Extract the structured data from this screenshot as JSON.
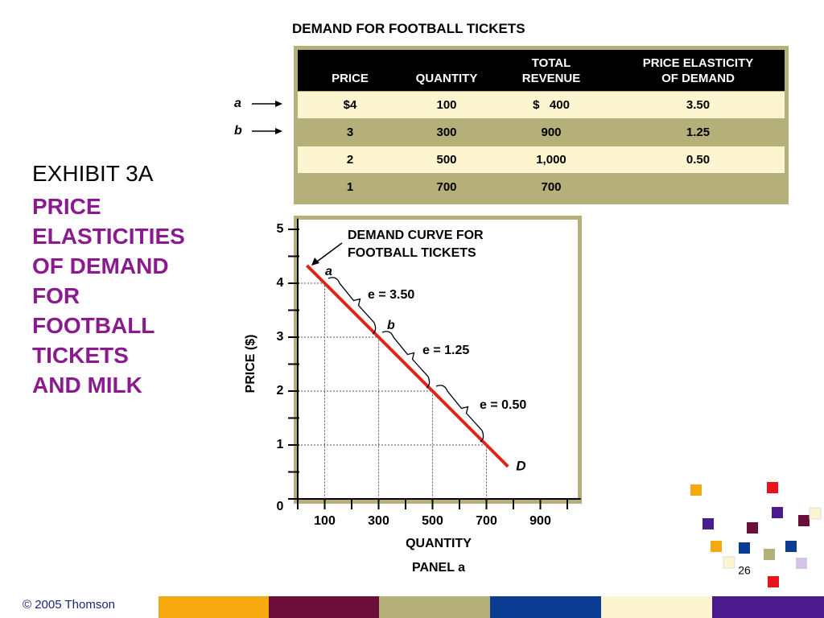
{
  "exhibit": "EXHIBIT 3A",
  "heading_lines": [
    "PRICE",
    "ELASTICITIES",
    "OF DEMAND",
    "FOR",
    "FOOTBALL",
    "TICKETS",
    "AND MILK"
  ],
  "table": {
    "title": "DEMAND FOR FOOTBALL TICKETS",
    "header": [
      [
        "PRICE"
      ],
      [
        "QUANTITY"
      ],
      [
        "TOTAL",
        "REVENUE"
      ],
      [
        "PRICE ELASTICITY",
        "OF DEMAND"
      ]
    ],
    "rows": [
      [
        "$4",
        "100",
        "$   400",
        "3.50"
      ],
      [
        "3",
        "300",
        "900",
        "1.25"
      ],
      [
        "2",
        "500",
        "1,000",
        "0.50"
      ],
      [
        "1",
        "700",
        "700"
      ]
    ],
    "row_markers": [
      "a",
      "b"
    ]
  },
  "chart_data": {
    "type": "line",
    "x": [
      100,
      300,
      500,
      700
    ],
    "series": [
      {
        "name": "D",
        "color": "#e0241b",
        "values": [
          4,
          3,
          2,
          1
        ]
      }
    ],
    "xlim": [
      0,
      1050
    ],
    "xticks": [
      100,
      300,
      500,
      700,
      900
    ],
    "xminorticks": [
      0,
      200,
      400,
      600,
      800,
      1000
    ],
    "ylim": [
      0,
      5.2
    ],
    "yticks": [
      0,
      1,
      2,
      3,
      4,
      5
    ],
    "yminorticks": [
      0.5,
      1.5,
      2.5,
      3.5,
      4.5
    ],
    "xlabel": "QUANTITY",
    "ylabel": "PRICE ($)",
    "panel": "PANEL a",
    "annotations": [
      "DEMAND CURVE FOR",
      "FOOTBALL TICKETS",
      "a",
      "b",
      "e = 3.50",
      "e = 1.25",
      "e = 0.50"
    ]
  },
  "footer": "© 2005 Thomson",
  "page_number": "26"
}
